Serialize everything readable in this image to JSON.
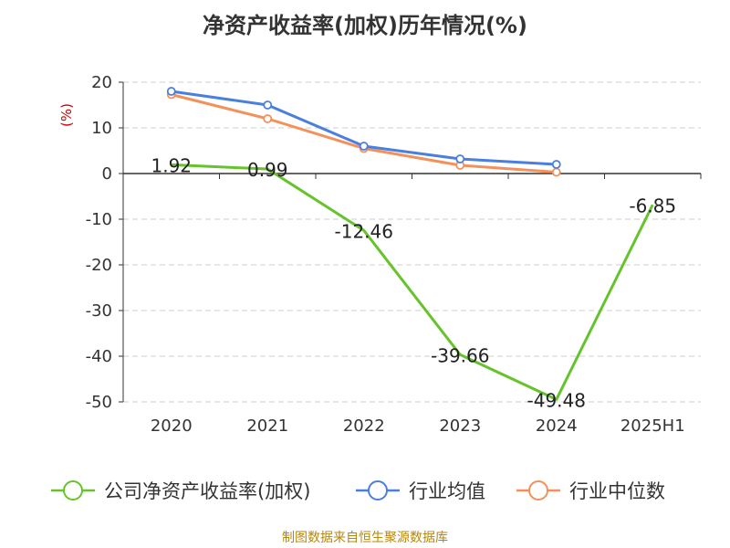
{
  "page": {
    "title": "净资产收益率(加权)历年情况(%)",
    "source": "制图数据来自恒生聚源数据库"
  },
  "colors": {
    "company": "#66c32b",
    "industry_avg": "#4a7fe0",
    "industry_median": "#f4905a",
    "unit": "#cc0000",
    "source": "#b8860b"
  },
  "chart_data": {
    "type": "line",
    "title": "净资产收益率(加权)历年情况(%)",
    "ylabel": "(%)",
    "xlabel": "",
    "ylim": [
      -50,
      20
    ],
    "yticks": [
      20,
      10,
      0,
      -10,
      -20,
      -30,
      -40,
      -50
    ],
    "grid": true,
    "legend_position": "bottom",
    "categories": [
      "2020",
      "2021",
      "2022",
      "2023",
      "2024",
      "2025H1"
    ],
    "series": [
      {
        "name": "公司净资产收益率(加权)",
        "values": [
          1.92,
          0.99,
          -12.46,
          -39.66,
          -49.48,
          -6.85
        ],
        "labels": [
          "1.92",
          "0.99",
          "-12.46",
          "-39.66",
          "-49.48",
          "-6.85"
        ]
      },
      {
        "name": "行业均值",
        "values": [
          18.0,
          15.0,
          6.0,
          3.2,
          2.0,
          null
        ]
      },
      {
        "name": "行业中位数",
        "values": [
          17.3,
          12.0,
          5.5,
          1.8,
          0.3,
          null
        ]
      }
    ]
  }
}
